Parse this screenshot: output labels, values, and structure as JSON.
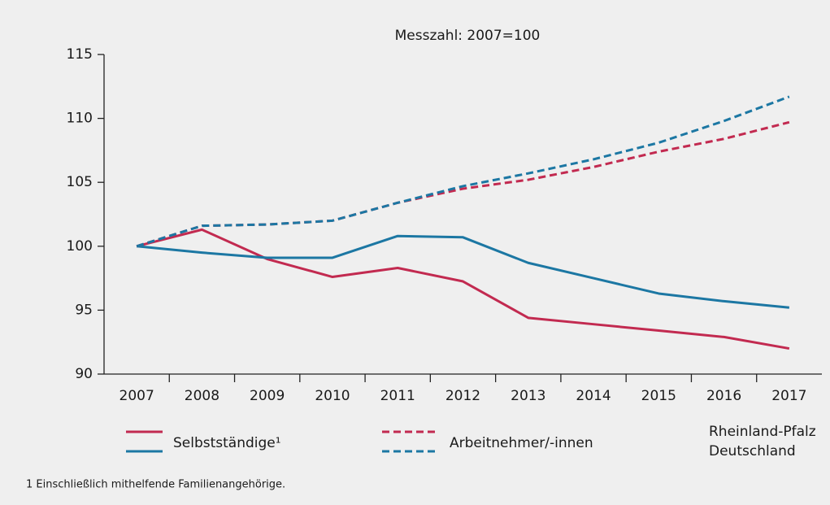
{
  "chart_data": {
    "type": "line",
    "title": "Messzahl: 2007=100",
    "categories": [
      "2007",
      "2008",
      "2009",
      "2010",
      "2011",
      "2012",
      "2013",
      "2014",
      "2015",
      "2016",
      "2017"
    ],
    "series": [
      {
        "color": "#c22a50",
        "style": "solid",
        "values": [
          100,
          101.3,
          99.0,
          97.6,
          98.3,
          97.25,
          94.4,
          93.9,
          93.4,
          92.9,
          92.0
        ]
      },
      {
        "color": "#1c77a3",
        "style": "solid",
        "values": [
          100,
          99.5,
          99.1,
          99.1,
          100.8,
          100.7,
          98.7,
          97.5,
          96.3,
          95.7,
          95.2
        ]
      },
      {
        "color": "#c22a50",
        "style": "dashed",
        "values": [
          100,
          101.6,
          101.7,
          102.0,
          103.4,
          104.5,
          105.2,
          106.2,
          107.4,
          108.4,
          109.7
        ]
      },
      {
        "color": "#1c77a3",
        "style": "dashed",
        "values": [
          100,
          101.6,
          101.7,
          102.0,
          103.4,
          104.7,
          105.7,
          106.8,
          108.1,
          109.8,
          111.7
        ]
      }
    ],
    "legend": {
      "kinds": [
        "Selbstständige¹",
        "Arbeitnehmer/-innen"
      ],
      "regions": [
        "Rheinland-Pfalz",
        "Deutschland"
      ]
    },
    "ylim": [
      90,
      115
    ],
    "yticks": [
      90,
      95,
      100,
      105,
      110,
      115
    ],
    "footnote": "1 Einschließlich mithelfende Familienangehörige."
  }
}
